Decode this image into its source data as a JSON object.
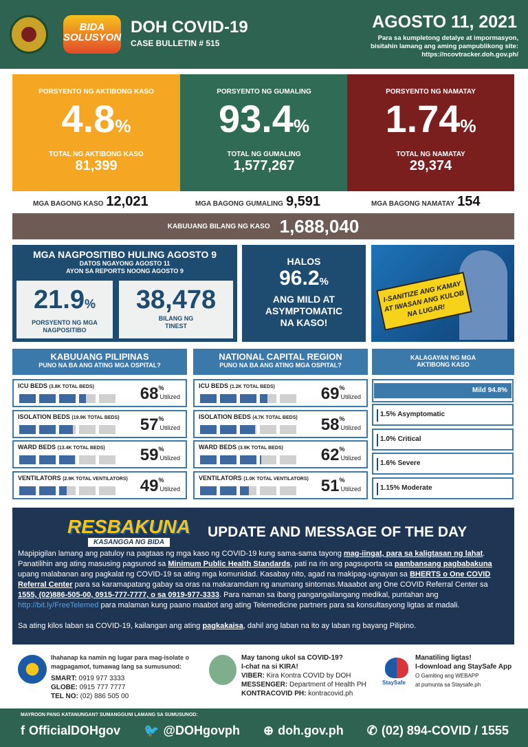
{
  "header": {
    "title": "DOH COVID-19",
    "bulletin": "CASE BULLETIN # 515",
    "date": "AGOSTO 11, 2021",
    "note": [
      "Para sa kumpletong detalye at impormasyon,",
      "bisitahin lamang ang aming pampublikong site:",
      "https://ncovtracker.doh.gov.ph/"
    ],
    "logo_text": "BIDA SOLUSYON"
  },
  "stats": [
    {
      "label": "PORSYENTO NG AKTIBONG KASO",
      "value": "4.8",
      "unit": "%",
      "total_label": "TOTAL NG AKTIBONG KASO",
      "total": "81,399",
      "color": "#f5a623"
    },
    {
      "label": "PORSYENTO NG GUMALING",
      "value": "93.4",
      "unit": "%",
      "total_label": "TOTAL NG GUMALING",
      "total": "1,577,267",
      "color": "#2f6b55"
    },
    {
      "label": "PORSYENTO NG NAMATAY",
      "value": "1.74",
      "unit": "%",
      "total_label": "TOTAL NG NAMATAY",
      "total": "29,374",
      "color": "#7b1e1e"
    }
  ],
  "new": [
    {
      "label": "MGA BAGONG KASO",
      "value": "12,021"
    },
    {
      "label": "MGA BAGONG GUMALING",
      "value": "9,591"
    },
    {
      "label": "MGA BAGONG NAMATAY",
      "value": "154"
    }
  ],
  "total": {
    "label": "KABUUANG BILANG NG KASO",
    "value": "1,688,040"
  },
  "positivity": {
    "title": "MGA NAGPOSITIBO HULING AGOSTO 9",
    "sub1": "DATOS NGAYONG AGOSTO 11",
    "sub2": "AYON SA REPORTS NOONG AGOSTO 9",
    "rate": "21.9",
    "rate_unit": "%",
    "rate_label1": "PORSYENTO NG MGA",
    "rate_label2": "NAGPOSITIBO",
    "tested": "38,478",
    "tested_label1": "BILANG NG",
    "tested_label2": "TINEST"
  },
  "halos": {
    "l1": "HALOS",
    "value": "96.2",
    "unit": "%",
    "l2": "ANG MILD AT",
    "l3": "ASYMPTOMATIC",
    "l4": "NA KASO!"
  },
  "poster": {
    "sign": "I-SANITIZE ANG KAMAY AT IWASAN ANG KULOB NA LUGAR!"
  },
  "hospital": {
    "utilized": "Utilized",
    "pct": "%",
    "panels": [
      {
        "title": "KABUUANG PILIPINAS",
        "sub": "PUNO NA BA ANG ATING MGA OSPITAL?",
        "rows": [
          {
            "name": "ICU BEDS",
            "cap": "(3.8K TOTAL BEDS)",
            "value": 68
          },
          {
            "name": "ISOLATION BEDS",
            "cap": "(19.9K TOTAL BEDS)",
            "value": 57
          },
          {
            "name": "WARD BEDS",
            "cap": "(13.4K TOTAL BEDS)",
            "value": 59
          },
          {
            "name": "VENTILATORS",
            "cap": "(2.9K TOTAL VENTILATORS)",
            "value": 49
          }
        ]
      },
      {
        "title": "NATIONAL CAPITAL REGION",
        "sub": "PUNO NA BA ANG ATING MGA OSPITAL?",
        "rows": [
          {
            "name": "ICU BEDS",
            "cap": "(1.2K TOTAL BEDS)",
            "value": 69
          },
          {
            "name": "ISOLATION BEDS",
            "cap": "(4.7K TOTAL BEDS)",
            "value": 58
          },
          {
            "name": "WARD BEDS",
            "cap": "(3.9K TOTAL BEDS)",
            "value": 62
          },
          {
            "name": "VENTILATORS",
            "cap": "(1.0K TOTAL VENTILATORS)",
            "value": 51
          }
        ]
      }
    ]
  },
  "status": {
    "title1": "KALAGAYAN NG MGA",
    "title2": "AKTIBONG KASO",
    "mild": "Mild 94.8%",
    "items": [
      "1.5% Asymptomatic",
      "1.0% Critical",
      "1.6% Severe",
      "1.15% Moderate"
    ]
  },
  "message": {
    "logo": "RESBAKUNA",
    "logo_sub": "KASANGGA NG BIDA",
    "title": "UPDATE AND MESSAGE OF THE DAY",
    "p1": [
      "Mapipigilan lamang ang patuloy na pagtaas ng mga kaso ng COVID-19 kung sama-sama tayong ",
      "mag-iingat, para sa kaligtasan ng lahat",
      ". Panatilihin ang ating masusing pagsunod sa ",
      "Minimum Public Health Standards",
      ", pati na rin ang pagsuporta sa ",
      "pambansang pagbabakuna",
      " upang malabanan ang pagkalat ng COVID-19 sa ating mga komunidad. Kasabay nito, agad na makipag-ugnayan sa ",
      "BHERTS o One COVID Referral Center",
      " para sa karamapatang gabay sa oras na makaramdam ng anumang sintomas.Maaabot ang One COVID Referral Center sa ",
      "1555, (02)886-505-00, 0915-777-7777, o sa 0919-977-3333",
      ". Para naman sa ibang pangangailangang medikal, puntahan ang ",
      "http://bit.ly/FreeTelemed",
      " para malaman kung paano maabot ang ating Telemedicine partners para sa konsultasyong ligtas at madali."
    ],
    "p2": [
      "Sa ating kilos laban sa COVID-19, kailangan ang ating ",
      "pagkakaisa",
      ", dahil ang laban na ito ay laban ng bayang Pilipino."
    ]
  },
  "contacts": {
    "isolate": {
      "text": "Ihahanap ka namin ng lugar para mag-isolate o magpagamot, tumawag lang sa sumusunod:",
      "lines": [
        [
          "SMART:",
          " 0919 977 3333"
        ],
        [
          "GLOBE:",
          " 0915 777 7777"
        ],
        [
          "TEL NO:",
          " (02) 886 505 00"
        ]
      ]
    },
    "kira": {
      "l1": "May tanong ukol sa COVID-19?",
      "l2": "I-chat na si KIRA!",
      "lines": [
        [
          "VIBER:",
          " Kira Kontra COVID by DOH"
        ],
        [
          "MESSENGER:",
          " Department of Health PH"
        ],
        [
          "KONTRACOVID PH:",
          " kontracovid.ph"
        ]
      ]
    },
    "staysafe": {
      "logo": "StaySafe",
      "l1": "Manatiling ligtas!",
      "l2": "I-download ang StaySafe App",
      "l3": "O Gamiting ang WEBAPP",
      "l4": "at pumunta sa Staysafe.ph"
    }
  },
  "footer": {
    "question": "MAYROON PANG KATANUNGAN? SUMANGGUNI LAMANG SA SUMUSUNOD:",
    "links": [
      {
        "icon": "facebook-icon",
        "glyph": "f",
        "text": "OfficialDOHgov"
      },
      {
        "icon": "twitter-icon",
        "glyph": "🐦",
        "text": "@DOHgovph"
      },
      {
        "icon": "globe-icon",
        "glyph": "⊕",
        "text": "doh.gov.ph"
      },
      {
        "icon": "phone-icon",
        "glyph": "✆",
        "text": "(02) 894-COVID  /  1555"
      }
    ]
  }
}
